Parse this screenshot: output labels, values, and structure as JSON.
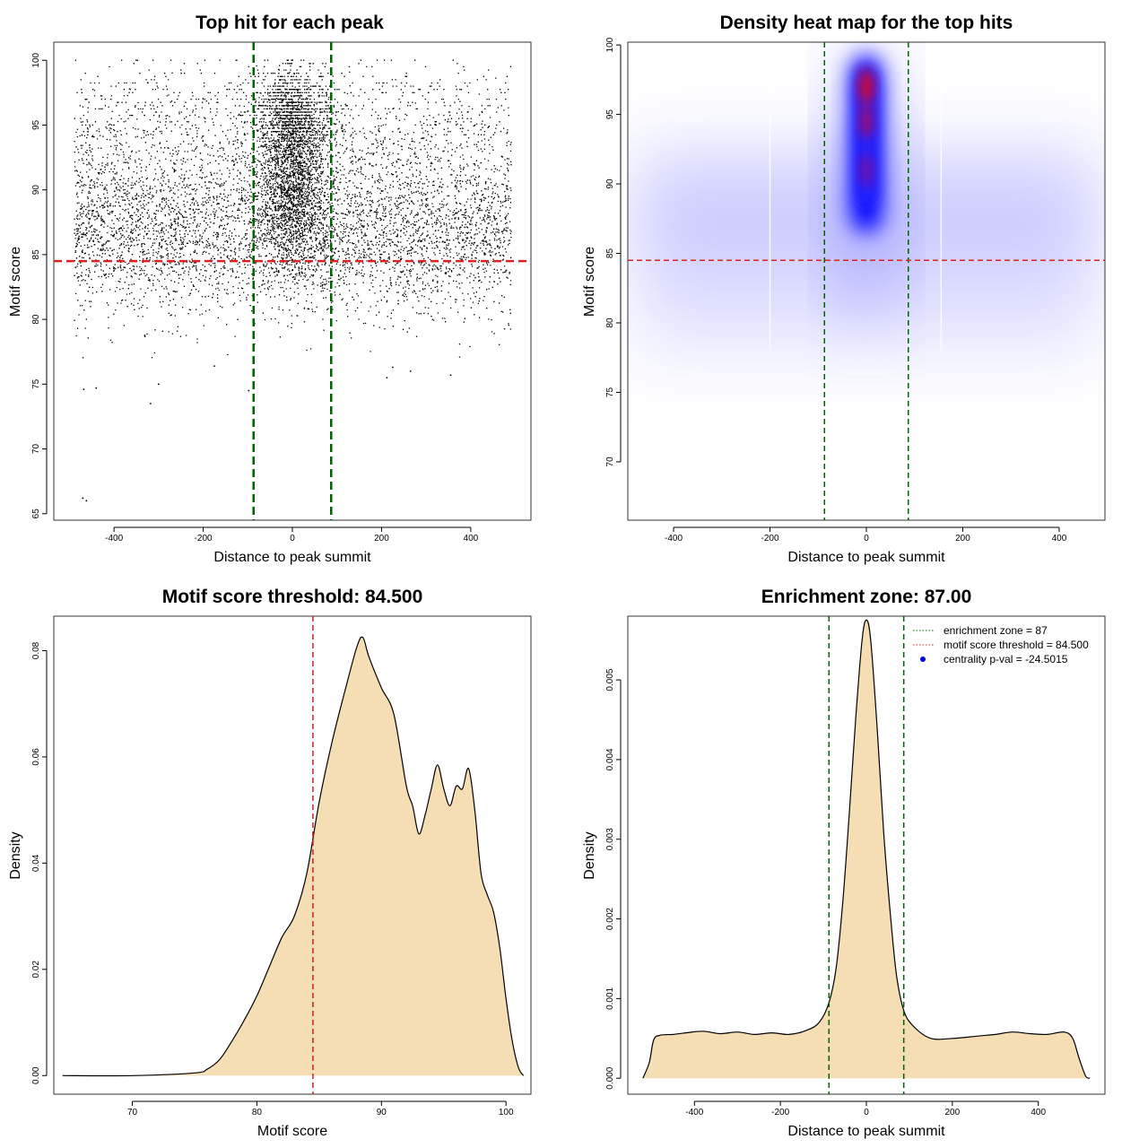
{
  "chart_data": [
    {
      "id": "p1",
      "type": "scatter",
      "title": "Top hit for each peak",
      "xlabel": "Distance to peak summit",
      "ylabel": "Motif score",
      "xlim": [
        -535,
        535
      ],
      "ylim": [
        64.5,
        101.4
      ],
      "x_ticks": [
        "-400",
        "-200",
        "0",
        "200",
        "400"
      ],
      "y_ticks": [
        "65",
        "70",
        "75",
        "80",
        "85",
        "90",
        "95",
        "100"
      ],
      "threshold_y": 84.5,
      "zone_x": [
        -87,
        87
      ],
      "x_range": [
        -490,
        490
      ],
      "outliers": [
        {
          "x": -470,
          "y": 66.2
        },
        {
          "x": -462,
          "y": 66.0
        },
        {
          "x": -468,
          "y": 74.6
        },
        {
          "x": -440,
          "y": 74.7
        },
        {
          "x": -318,
          "y": 73.5
        },
        {
          "x": -300,
          "y": 75.0
        },
        {
          "x": -98,
          "y": 74.5
        },
        {
          "x": 212,
          "y": 75.5
        },
        {
          "x": 355,
          "y": 75.7
        },
        {
          "x": 225,
          "y": 76.3
        },
        {
          "x": 265,
          "y": 76.0
        },
        {
          "x": -175,
          "y": 76.4
        }
      ]
    },
    {
      "id": "p2",
      "type": "heatmap",
      "title": "Density heat map for the top hits",
      "xlabel": "Distance to peak summit",
      "ylabel": "Motif score",
      "xlim": [
        -495,
        495
      ],
      "ylim": [
        65.8,
        100.2
      ],
      "x_ticks": [
        "-400",
        "-200",
        "0",
        "200",
        "400"
      ],
      "y_ticks": [
        "70",
        "75",
        "80",
        "85",
        "90",
        "95",
        "100"
      ],
      "threshold_y": 84.5,
      "zone_x": [
        -87,
        87
      ]
    },
    {
      "id": "p3",
      "type": "area",
      "title": "Motif score threshold: 84.500",
      "xlabel": "Motif score",
      "ylabel": "Density",
      "xlim": [
        63.7,
        102.0
      ],
      "ylim": [
        -0.0035,
        0.0865
      ],
      "x_ticks": [
        "70",
        "80",
        "90",
        "100"
      ],
      "y_ticks": [
        "0.00",
        "0.02",
        "0.04",
        "0.06",
        "0.08"
      ],
      "threshold_x": 84.5,
      "fill": "#F5DEB3",
      "points": [
        [
          64.4,
          0.0
        ],
        [
          70,
          0.0
        ],
        [
          75,
          0.0005
        ],
        [
          76,
          0.0012
        ],
        [
          77,
          0.003
        ],
        [
          78,
          0.0065
        ],
        [
          79,
          0.0105
        ],
        [
          80,
          0.015
        ],
        [
          81,
          0.0205
        ],
        [
          82,
          0.026
        ],
        [
          83,
          0.03
        ],
        [
          84,
          0.038
        ],
        [
          85,
          0.0515
        ],
        [
          86,
          0.0625
        ],
        [
          87,
          0.0718
        ],
        [
          88,
          0.0805
        ],
        [
          88.5,
          0.0825
        ],
        [
          89,
          0.0788
        ],
        [
          90,
          0.073
        ],
        [
          91,
          0.068
        ],
        [
          92,
          0.0545
        ],
        [
          92.5,
          0.0508
        ],
        [
          93,
          0.0455
        ],
        [
          93.5,
          0.049
        ],
        [
          94,
          0.054
        ],
        [
          94.5,
          0.0585
        ],
        [
          95,
          0.054
        ],
        [
          95.5,
          0.0508
        ],
        [
          96,
          0.0545
        ],
        [
          96.5,
          0.054
        ],
        [
          97,
          0.0578
        ],
        [
          97.5,
          0.0498
        ],
        [
          98,
          0.038
        ],
        [
          98.5,
          0.034
        ],
        [
          99,
          0.0308
        ],
        [
          99.5,
          0.024
        ],
        [
          100,
          0.0145
        ],
        [
          100.5,
          0.0065
        ],
        [
          101,
          0.0015
        ],
        [
          101.4,
          0.0
        ]
      ]
    },
    {
      "id": "p4",
      "type": "area",
      "title": "Enrichment zone: 87.00",
      "xlabel": "Distance to peak summit",
      "ylabel": "Density",
      "xlim": [
        -555,
        555
      ],
      "ylim": [
        -0.0002,
        0.0058
      ],
      "x_ticks": [
        "-400",
        "-200",
        "0",
        "200",
        "400"
      ],
      "y_ticks": [
        "0.000",
        "0.001",
        "0.002",
        "0.003",
        "0.004",
        "0.005"
      ],
      "zone_x": [
        -87,
        87
      ],
      "fill": "#F5DEB3",
      "points": [
        [
          -520,
          0.0
        ],
        [
          -505,
          0.0002
        ],
        [
          -495,
          0.00048
        ],
        [
          -480,
          0.00054
        ],
        [
          -450,
          0.00055
        ],
        [
          -420,
          0.00057
        ],
        [
          -380,
          0.00059
        ],
        [
          -340,
          0.00056
        ],
        [
          -300,
          0.00058
        ],
        [
          -260,
          0.00055
        ],
        [
          -220,
          0.00057
        ],
        [
          -180,
          0.00055
        ],
        [
          -140,
          0.0006
        ],
        [
          -110,
          0.0007
        ],
        [
          -87,
          0.00095
        ],
        [
          -70,
          0.0014
        ],
        [
          -55,
          0.0022
        ],
        [
          -40,
          0.0033
        ],
        [
          -25,
          0.0045
        ],
        [
          -10,
          0.0055
        ],
        [
          0,
          0.00575
        ],
        [
          10,
          0.0055
        ],
        [
          25,
          0.0044
        ],
        [
          40,
          0.0031
        ],
        [
          55,
          0.0021
        ],
        [
          70,
          0.0013
        ],
        [
          87,
          0.00085
        ],
        [
          110,
          0.00065
        ],
        [
          150,
          0.0005
        ],
        [
          200,
          0.0005
        ],
        [
          260,
          0.00053
        ],
        [
          300,
          0.00055
        ],
        [
          340,
          0.00058
        ],
        [
          380,
          0.00056
        ],
        [
          420,
          0.00055
        ],
        [
          460,
          0.00058
        ],
        [
          480,
          0.0005
        ],
        [
          495,
          0.00025
        ],
        [
          510,
          3e-05
        ],
        [
          520,
          0.0
        ]
      ],
      "legend": [
        {
          "label": "enrichment zone = 87",
          "color": "#006400",
          "style": "dotted"
        },
        {
          "label": "motif score threshold = 84.500",
          "color": "#cc2222",
          "style": "dotted"
        },
        {
          "label": "centrality p-val = -24.5015",
          "color": "#0000ee",
          "style": "point"
        }
      ]
    }
  ]
}
